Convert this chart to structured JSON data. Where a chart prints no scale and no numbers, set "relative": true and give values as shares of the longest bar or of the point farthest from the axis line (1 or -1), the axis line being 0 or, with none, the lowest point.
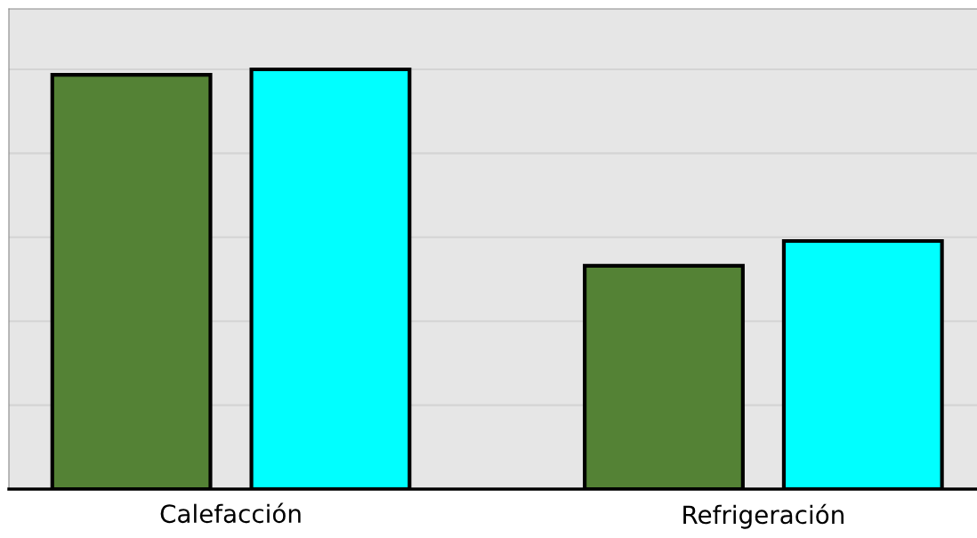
{
  "chart_data": {
    "type": "bar",
    "relative": true,
    "grid": "y",
    "categories": [
      "Calefacción",
      "Refrigeración"
    ],
    "series": [
      {
        "color": "#548235",
        "values": [
          0.987,
          0.532
        ]
      },
      {
        "color": "#00ffff",
        "values": [
          1.0,
          0.591
        ]
      }
    ]
  }
}
